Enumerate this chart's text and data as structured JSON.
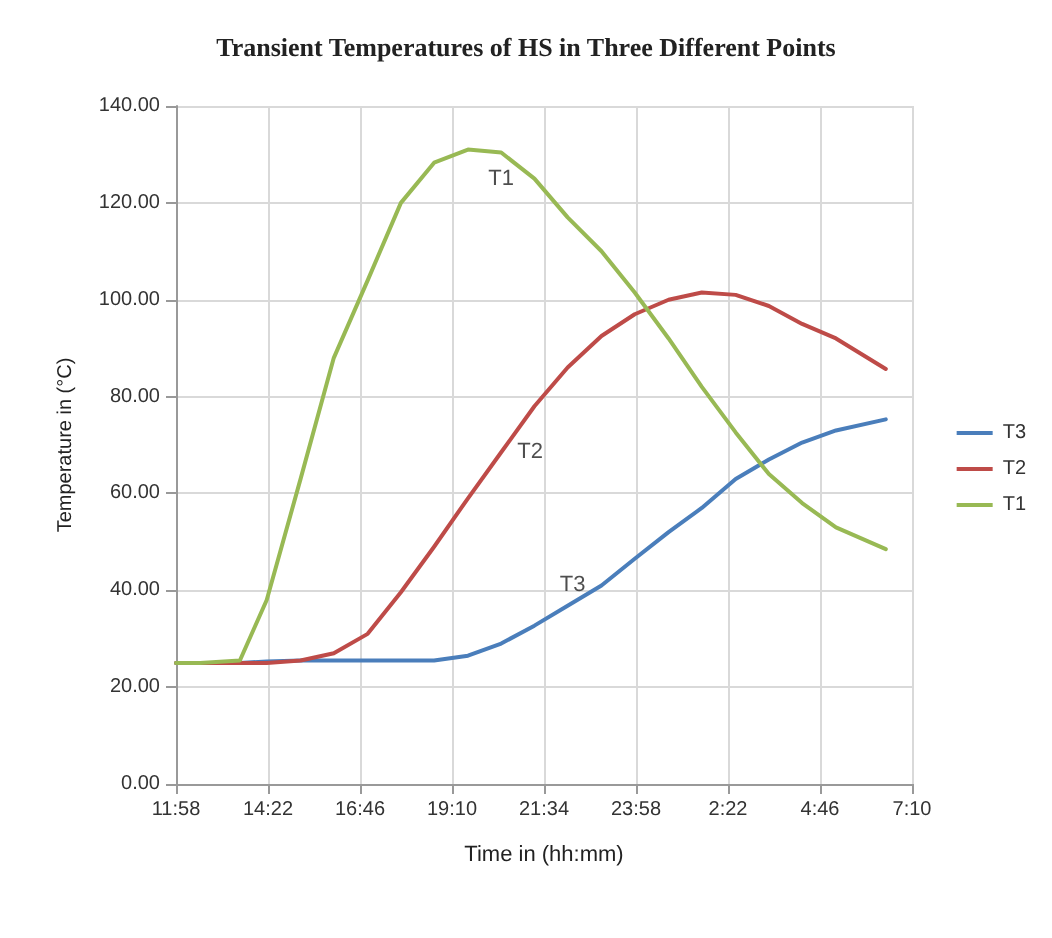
{
  "chart_data": {
    "type": "line",
    "title": "Transient Temperatures of HS in Three Different Points",
    "xlabel": "Time in (hh:mm)",
    "ylabel": "Temperature in (°C)",
    "x": [
      "--01-01T11:58",
      "--01-01T12:36",
      "--01-01T13:38",
      "--01-01T14:20",
      "--01-01T15:13",
      "--01-01T16:05",
      "--01-01T16:58",
      "--01-01T17:50",
      "--01-01T18:42",
      "--01-01T19:35",
      "--01-01T20:27",
      "--01-01T21:19",
      "--01-01T22:11",
      "--01-01T23:04",
      "--01-01T23:56",
      "--01-02T00:49",
      "--01-02T01:41",
      "--01-02T02:34",
      "--01-02T03:26",
      "--01-02T04:18",
      "--01-02T05:11",
      "--01-02T06:29"
    ],
    "series": [
      {
        "name": "T3",
        "color": "#4a7ebb",
        "values": [
          25,
          25,
          25,
          25.3,
          25.5,
          25.5,
          25.5,
          25.5,
          25.5,
          26.5,
          29,
          32.7,
          36.8,
          41,
          46.5,
          52,
          57,
          63,
          67,
          70.5,
          73,
          75.3
        ]
      },
      {
        "name": "T2",
        "color": "#be4b48",
        "values": [
          25,
          25,
          25,
          25,
          25.5,
          27,
          31,
          39.6,
          49,
          59,
          68.5,
          78,
          86,
          92.5,
          97,
          100,
          101.5,
          101,
          98.7,
          95,
          92,
          85.7
        ]
      },
      {
        "name": "T1",
        "color": "#98b954",
        "values": [
          25,
          25,
          25.5,
          38,
          63,
          88,
          104,
          120,
          128.3,
          131,
          130.4,
          125,
          117,
          110,
          101.5,
          92,
          82,
          72.6,
          64,
          58,
          53,
          48.5
        ]
      }
    ],
    "annotations": [
      {
        "text": "T1",
        "x": "--01-01T20:27",
        "y": 130.4
      },
      {
        "text": "T2",
        "x": "--01-01T20:27",
        "y": 68.5
      },
      {
        "text": "T3",
        "x": "--01-01T23:04",
        "y": 41
      }
    ],
    "xlim": [
      "--01-01T11:58",
      "--01-02T07:10"
    ],
    "xticks": [
      {
        "value": "--01-01T11:58",
        "label": "11:58"
      },
      {
        "value": "--01-01T14:22",
        "label": "14:22"
      },
      {
        "value": "--01-01T16:46",
        "label": "16:46"
      },
      {
        "value": "--01-01T19:10",
        "label": "19:10"
      },
      {
        "value": "--01-01T21:34",
        "label": "21:34"
      },
      {
        "value": "--01-01T23:58",
        "label": "23:58"
      },
      {
        "value": "--01-02T02:22",
        "label": "2:22"
      },
      {
        "value": "--01-02T04:46",
        "label": "4:46"
      },
      {
        "value": "--01-02T07:10",
        "label": "7:10"
      }
    ],
    "ylim": [
      0,
      140
    ],
    "yticks": [
      {
        "value": 0,
        "label": "0.00"
      },
      {
        "value": 20,
        "label": "20.00"
      },
      {
        "value": 40,
        "label": "40.00"
      },
      {
        "value": 60,
        "label": "60.00"
      },
      {
        "value": 80,
        "label": "80.00"
      },
      {
        "value": 100,
        "label": "100.00"
      },
      {
        "value": 120,
        "label": "120.00"
      },
      {
        "value": 140,
        "label": "140.00"
      }
    ],
    "grid": true,
    "legend": "right",
    "marker": "none",
    "line_style": "solid"
  }
}
